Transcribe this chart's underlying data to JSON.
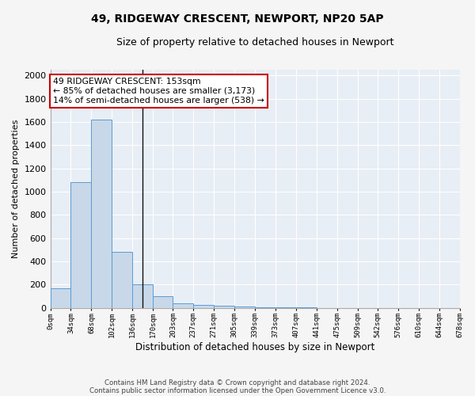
{
  "title": "49, RIDGEWAY CRESCENT, NEWPORT, NP20 5AP",
  "subtitle": "Size of property relative to detached houses in Newport",
  "xlabel": "Distribution of detached houses by size in Newport",
  "ylabel": "Number of detached properties",
  "bar_color": "#c8d8e8",
  "bar_edge_color": "#5b9bd5",
  "vline_x": 153,
  "vline_color": "#111111",
  "annotation_text": "49 RIDGEWAY CRESCENT: 153sqm\n← 85% of detached houses are smaller (3,173)\n14% of semi-detached houses are larger (538) →",
  "annotation_box_color": "#cc0000",
  "footnote1": "Contains HM Land Registry data © Crown copyright and database right 2024.",
  "footnote2": "Contains public sector information licensed under the Open Government Licence v3.0.",
  "bin_edges": [
    0,
    34,
    68,
    102,
    136,
    170,
    203,
    237,
    271,
    305,
    339,
    373,
    407,
    441,
    475,
    509,
    542,
    576,
    610,
    644,
    678
  ],
  "bin_counts": [
    165,
    1085,
    1620,
    480,
    200,
    100,
    40,
    25,
    15,
    10,
    5,
    5,
    5,
    0,
    0,
    0,
    0,
    0,
    0,
    0
  ],
  "ylim": [
    0,
    2050
  ],
  "background_color": "#e8eef5",
  "figure_color": "#f5f5f5",
  "grid_color": "#ffffff",
  "xtick_labels": [
    "0sqm",
    "34sqm",
    "68sqm",
    "102sqm",
    "136sqm",
    "170sqm",
    "203sqm",
    "237sqm",
    "271sqm",
    "305sqm",
    "339sqm",
    "373sqm",
    "407sqm",
    "441sqm",
    "475sqm",
    "509sqm",
    "542sqm",
    "576sqm",
    "610sqm",
    "644sqm",
    "678sqm"
  ]
}
